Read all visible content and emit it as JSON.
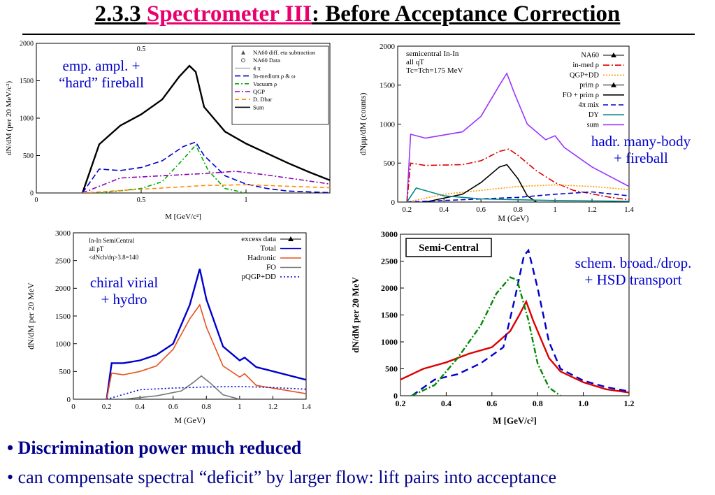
{
  "title": {
    "prefix": "2.3.3 ",
    "highlight": "Spectrometer III",
    "suffix": ": Before Acceptance Correction"
  },
  "notes": {
    "p1": [
      "emp. ampl. +",
      "“hard” fireball"
    ],
    "p2": [
      "hadr. many-body",
      "+ fireball"
    ],
    "p3": [
      "chiral virial",
      "+ hydro"
    ],
    "p4": [
      "schem. broad./drop.",
      "+ HSD transport"
    ]
  },
  "bullets": [
    "• Discrimination power much reduced",
    "• can compensate spectral “deficit” by larger flow: lift pairs into acceptance"
  ],
  "chart_data": [
    {
      "type": "line",
      "xlabel": "M [GeV/c²]",
      "ylabel": "dN/dM (per 20 MeV/c²)",
      "xlim": [
        0,
        1.4
      ],
      "ylim": [
        0,
        2000
      ],
      "xticks": [
        "0",
        "0.5",
        "1"
      ],
      "yticks": [
        "0",
        "500",
        "1000",
        "1500",
        "2000"
      ],
      "top_tick": "0.5",
      "legend_position": "top-right",
      "legend": [
        "NA60 diff. eta subtraction",
        "NA60 Data",
        "4 π",
        "In-medium ρ & ω",
        "Vacuum ρ",
        "QGP",
        "D. Dbar",
        "Sum"
      ],
      "series": [
        {
          "name": "Sum",
          "color": "#000000",
          "dash": "",
          "x": [
            0.22,
            0.3,
            0.4,
            0.5,
            0.6,
            0.68,
            0.73,
            0.76,
            0.8,
            0.9,
            1.0,
            1.1,
            1.2,
            1.3,
            1.4
          ],
          "y": [
            0,
            650,
            900,
            1050,
            1250,
            1550,
            1700,
            1620,
            1150,
            820,
            660,
            530,
            400,
            280,
            170
          ]
        },
        {
          "name": "In-medium ρ & ω",
          "color": "#0000cc",
          "dash": "8,4",
          "x": [
            0.22,
            0.3,
            0.4,
            0.5,
            0.6,
            0.7,
            0.76,
            0.8,
            0.9,
            1.0,
            1.1,
            1.2,
            1.4
          ],
          "y": [
            0,
            320,
            300,
            340,
            430,
            620,
            680,
            500,
            230,
            120,
            60,
            25,
            5
          ]
        },
        {
          "name": "Vacuum ρ",
          "color": "#00aa00",
          "dash": "6,3,2,3",
          "x": [
            0.3,
            0.5,
            0.6,
            0.7,
            0.76,
            0.82,
            0.9,
            1.0
          ],
          "y": [
            0,
            60,
            150,
            450,
            640,
            300,
            60,
            0
          ]
        },
        {
          "name": "QGP",
          "color": "#8b00b5",
          "dash": "7,3,2,3",
          "x": [
            0.22,
            0.4,
            0.6,
            0.8,
            0.95,
            1.1,
            1.3,
            1.4
          ],
          "y": [
            0,
            200,
            230,
            260,
            290,
            240,
            160,
            120
          ]
        },
        {
          "name": "D. Dbar",
          "color": "#ff8c00",
          "dash": "6,4",
          "x": [
            0.22,
            0.5,
            0.8,
            1.0,
            1.2,
            1.4
          ],
          "y": [
            0,
            50,
            100,
            110,
            90,
            70
          ]
        }
      ]
    },
    {
      "type": "line",
      "xlabel": "M (GeV)",
      "ylabel": "dNμμ/dM (counts)",
      "xlim": [
        0.15,
        1.4
      ],
      "ylim": [
        0,
        2000
      ],
      "xticks": [
        "0.2",
        "0.4",
        "0.6",
        "0.8",
        "1",
        "1.2",
        "1.4"
      ],
      "yticks": [
        "0",
        "500",
        "1000",
        "1500",
        "2000"
      ],
      "inset_text": [
        "semicentral In-In",
        "all qT",
        "Tc=Tch=175 MeV"
      ],
      "legend_position": "top-right",
      "legend": [
        "NA60",
        "in-med ρ",
        "QGP+DD",
        "prim ρ",
        "FO + prim ρ",
        "4π mix",
        "DY",
        "sum"
      ],
      "series": [
        {
          "name": "sum",
          "color": "#9933ff",
          "dash": "",
          "x": [
            0.2,
            0.22,
            0.3,
            0.4,
            0.5,
            0.6,
            0.7,
            0.74,
            0.78,
            0.85,
            0.95,
            1.0,
            1.05,
            1.2,
            1.4
          ],
          "y": [
            0,
            870,
            820,
            860,
            900,
            1100,
            1500,
            1650,
            1400,
            1000,
            800,
            850,
            700,
            450,
            200
          ]
        },
        {
          "name": "in-med ρ",
          "color": "#dd0000",
          "dash": "9,3,2,3",
          "x": [
            0.2,
            0.22,
            0.3,
            0.5,
            0.6,
            0.7,
            0.75,
            0.8,
            0.9,
            1.0,
            1.1,
            1.3,
            1.4
          ],
          "y": [
            0,
            500,
            470,
            480,
            530,
            650,
            680,
            600,
            400,
            250,
            150,
            60,
            30
          ]
        },
        {
          "name": "QGP+DD",
          "color": "#ff9900",
          "dash": "2,2",
          "x": [
            0.2,
            0.4,
            0.6,
            0.8,
            1.0,
            1.2,
            1.4
          ],
          "y": [
            0,
            100,
            150,
            200,
            220,
            200,
            160
          ]
        },
        {
          "name": "FO + prim ρ",
          "color": "#000000",
          "dash": "",
          "x": [
            0.3,
            0.5,
            0.6,
            0.7,
            0.74,
            0.8,
            0.85,
            0.9
          ],
          "y": [
            0,
            100,
            250,
            450,
            480,
            300,
            80,
            0
          ]
        },
        {
          "name": "4π mix",
          "color": "#0000cc",
          "dash": "7,4",
          "x": [
            0.2,
            0.4,
            0.6,
            0.8,
            1.0,
            1.2,
            1.4
          ],
          "y": [
            0,
            20,
            40,
            60,
            100,
            130,
            80
          ]
        },
        {
          "name": "DY",
          "color": "#008888",
          "dash": "",
          "x": [
            0.2,
            0.25,
            0.4,
            0.6,
            0.8,
            1.0,
            1.4
          ],
          "y": [
            0,
            180,
            80,
            40,
            30,
            20,
            10
          ]
        }
      ]
    },
    {
      "type": "line",
      "xlabel": "M (GeV)",
      "ylabel": "dN/dM per 20 MeV",
      "xlim": [
        0,
        1.4
      ],
      "ylim": [
        0,
        3000
      ],
      "xticks": [
        "0",
        "0.2",
        "0.4",
        "0.6",
        "0.8",
        "1",
        "1.2",
        "1.4"
      ],
      "yticks": [
        "0",
        "500",
        "1000",
        "1500",
        "2000",
        "2500",
        "3000"
      ],
      "inset_text": [
        "In-In SemiCentral",
        "all pT",
        "<dNch/dη>3.8=140"
      ],
      "legend_position": "top-right",
      "legend": [
        "excess data",
        "Total",
        "Hadronic",
        "FO",
        "pQGP+DD"
      ],
      "series": [
        {
          "name": "Total",
          "color": "#0000cc",
          "dash": "",
          "x": [
            0.2,
            0.23,
            0.3,
            0.4,
            0.5,
            0.6,
            0.7,
            0.76,
            0.8,
            0.9,
            1.0,
            1.03,
            1.1,
            1.4
          ],
          "y": [
            0,
            650,
            650,
            700,
            800,
            1000,
            1700,
            2350,
            1800,
            950,
            700,
            750,
            580,
            350
          ]
        },
        {
          "name": "Hadronic",
          "color": "#e8501c",
          "dash": "",
          "x": [
            0.2,
            0.23,
            0.3,
            0.4,
            0.5,
            0.6,
            0.7,
            0.76,
            0.8,
            0.9,
            1.0,
            1.03,
            1.1,
            1.4
          ],
          "y": [
            0,
            470,
            440,
            500,
            600,
            900,
            1450,
            1700,
            1300,
            600,
            400,
            460,
            250,
            100
          ]
        },
        {
          "name": "FO",
          "color": "#777777",
          "dash": "",
          "x": [
            0.3,
            0.5,
            0.65,
            0.72,
            0.77,
            0.82,
            0.9,
            1.0
          ],
          "y": [
            0,
            60,
            150,
            300,
            420,
            300,
            80,
            0
          ]
        },
        {
          "name": "pQGP+DD",
          "color": "#0000cc",
          "dash": "2,3",
          "x": [
            0.2,
            0.4,
            0.6,
            0.8,
            1.0,
            1.2,
            1.4
          ],
          "y": [
            0,
            170,
            200,
            220,
            230,
            210,
            180
          ]
        }
      ]
    },
    {
      "type": "line",
      "xlabel": "M  [GeV/c²]",
      "ylabel": "dN/dM  per 20 MeV",
      "xlim": [
        0.2,
        1.2
      ],
      "ylim": [
        0,
        3000
      ],
      "xticks": [
        "0.2",
        "0.4",
        "0.6",
        "0.8",
        "1.0",
        "1.2"
      ],
      "yticks": [
        "0",
        "500",
        "1000",
        "1500",
        "2000",
        "2500",
        "3000"
      ],
      "inset_title": "Semi-Central",
      "series": [
        {
          "color": "#dd0000",
          "dash": "",
          "x": [
            0.2,
            0.3,
            0.4,
            0.5,
            0.6,
            0.68,
            0.72,
            0.75,
            0.78,
            0.85,
            0.9,
            1.0,
            1.1,
            1.2
          ],
          "y": [
            300,
            500,
            620,
            780,
            900,
            1200,
            1500,
            1750,
            1400,
            700,
            450,
            250,
            120,
            60
          ]
        },
        {
          "color": "#0000cc",
          "dash": "10,6",
          "x": [
            0.25,
            0.35,
            0.45,
            0.55,
            0.65,
            0.7,
            0.74,
            0.76,
            0.8,
            0.85,
            0.9,
            1.0,
            1.1,
            1.2
          ],
          "y": [
            0,
            300,
            400,
            600,
            900,
            1800,
            2600,
            2700,
            2000,
            1000,
            500,
            280,
            160,
            80
          ]
        },
        {
          "color": "#008800",
          "dash": "8,3,2,3",
          "x": [
            0.25,
            0.35,
            0.45,
            0.55,
            0.62,
            0.68,
            0.71,
            0.76,
            0.8,
            0.85,
            0.9
          ],
          "y": [
            0,
            200,
            700,
            1300,
            1900,
            2200,
            2150,
            1400,
            600,
            150,
            0
          ]
        }
      ]
    }
  ]
}
